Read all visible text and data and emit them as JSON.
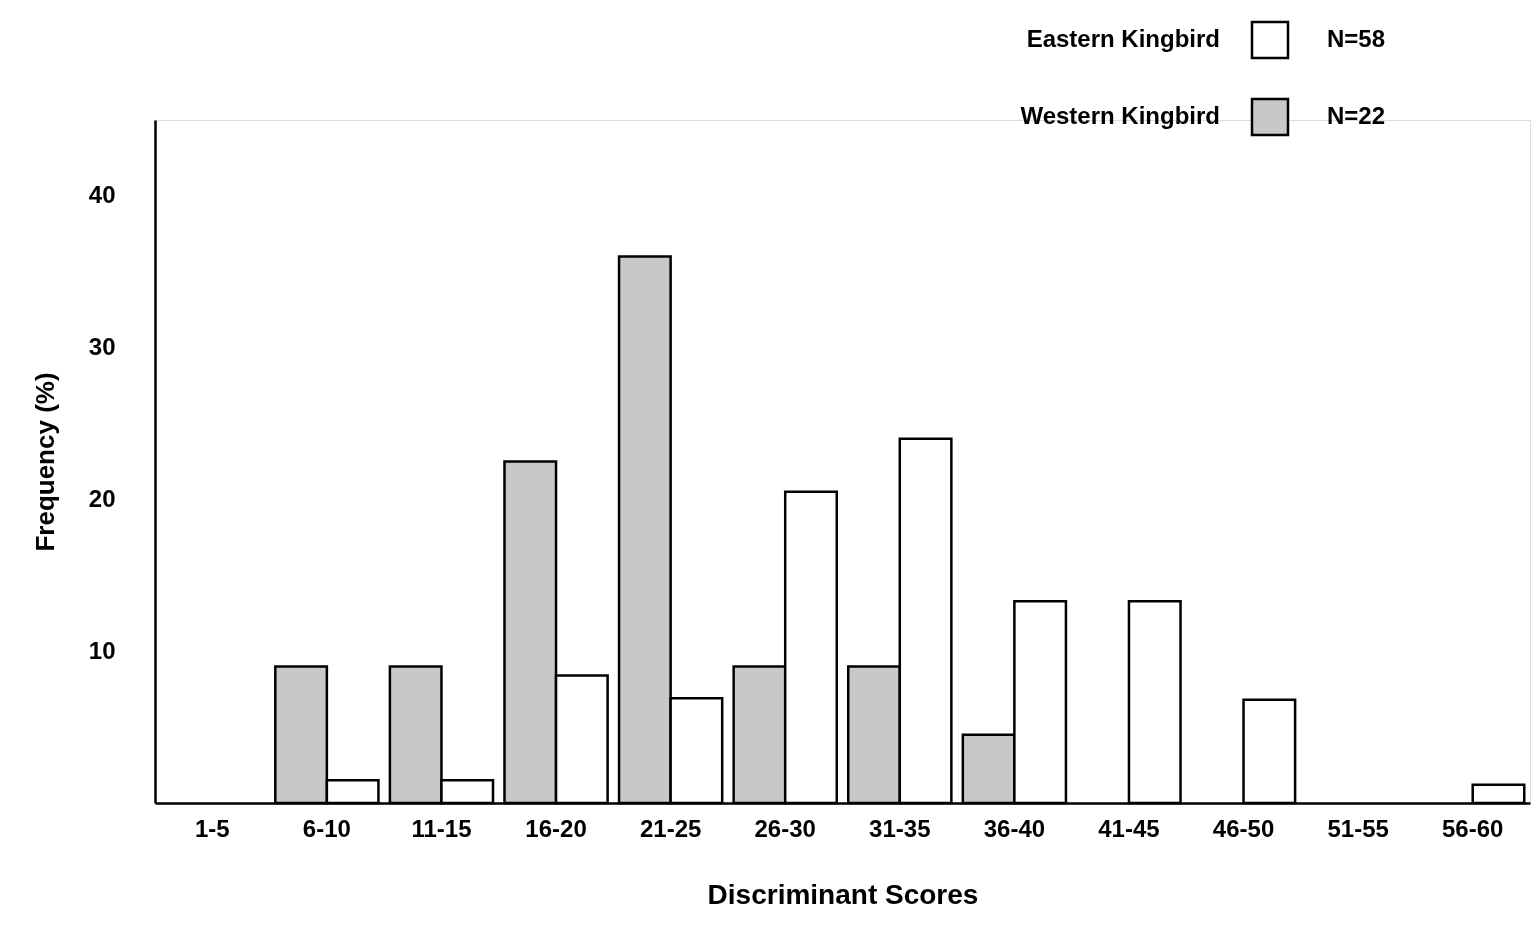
{
  "chart_data": {
    "type": "bar",
    "xlabel": "Discriminant Scores",
    "ylabel": "Frequency (%)",
    "categories": [
      "1-5",
      "6-10",
      "11-15",
      "16-20",
      "21-25",
      "26-30",
      "31-35",
      "36-40",
      "41-45",
      "46-50",
      "51-55",
      "56-60"
    ],
    "series": [
      {
        "name": "Western Kingbird",
        "color": "#c8c8c8",
        "values": [
          null,
          9,
          9,
          22.5,
          36,
          9,
          9,
          4.5,
          null,
          null,
          null,
          null
        ]
      },
      {
        "name": "Eastern Kingbird",
        "color": "#ffffff",
        "values": [
          null,
          1.5,
          1.5,
          8.4,
          6.9,
          20.5,
          24,
          13.3,
          13.3,
          6.8,
          null,
          1.2
        ]
      }
    ],
    "annotations": [
      "N=22",
      "N=58"
    ],
    "ylim": [
      0,
      45
    ],
    "yticks": [
      10,
      20,
      30,
      40
    ],
    "grid": false,
    "legend": "top right"
  }
}
